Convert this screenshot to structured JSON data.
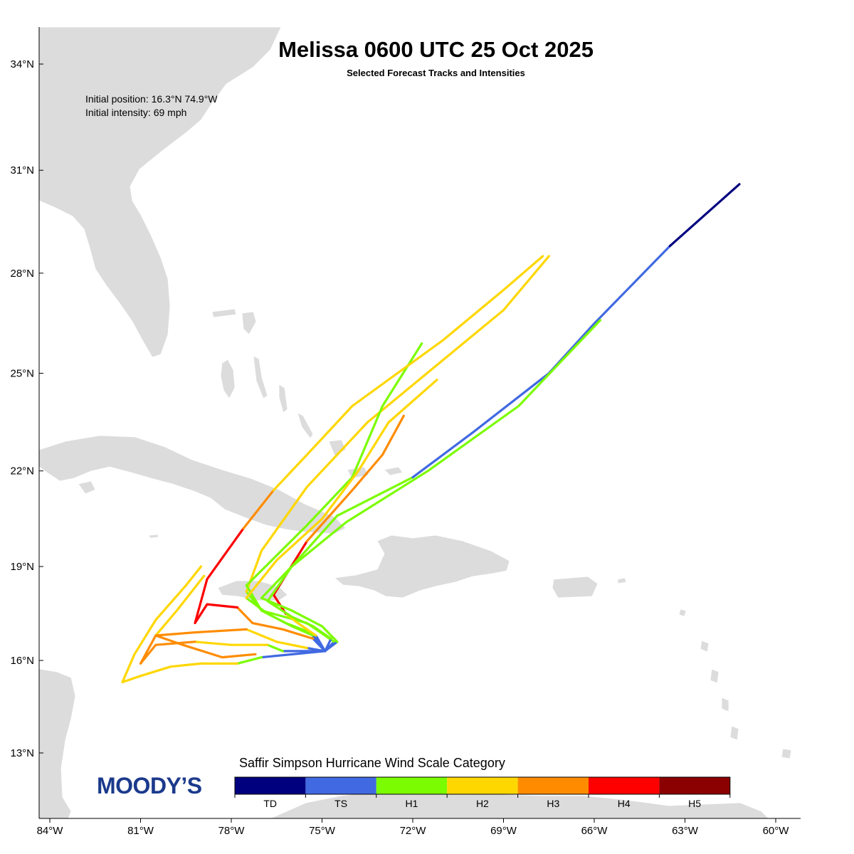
{
  "header": {
    "title": "Melissa 0600 UTC 25 Oct 2025",
    "subtitle": "Selected Forecast Tracks and Intensities"
  },
  "info": {
    "initial_position": "Initial position: 16.3°N 74.9°W",
    "initial_intensity": "Initial intensity: 69 mph"
  },
  "axes": {
    "lat_labels": [
      "34°N",
      "31°N",
      "28°N",
      "25°N",
      "22°N",
      "19°N",
      "16°N",
      "13°N"
    ],
    "lat_values": [
      34,
      31,
      28,
      25,
      22,
      19,
      16,
      13
    ],
    "lon_labels": [
      "84°W",
      "81°W",
      "78°W",
      "75°W",
      "72°W",
      "69°W",
      "66°W",
      "63°W",
      "60°W"
    ],
    "lon_values": [
      -84,
      -81,
      -78,
      -75,
      -72,
      -69,
      -66,
      -63,
      -60
    ]
  },
  "legend": {
    "title": "Saffir Simpson Hurricane Wind Scale Category",
    "categories": [
      {
        "label": "TD",
        "color": "#00007f"
      },
      {
        "label": "TS",
        "color": "#4169e1"
      },
      {
        "label": "H1",
        "color": "#7cfc00"
      },
      {
        "label": "H2",
        "color": "#ffd700"
      },
      {
        "label": "H3",
        "color": "#ff8c00"
      },
      {
        "label": "H4",
        "color": "#ff0000"
      },
      {
        "label": "H5",
        "color": "#8b0000"
      }
    ]
  },
  "logo": {
    "text": "MOODY’S",
    "color": "#1b3a8c"
  },
  "map": {
    "land_color": "#dcdcdc",
    "background": "#ffffff"
  },
  "tracks": [
    {
      "segments": [
        {
          "cat": "TS",
          "points": [
            [
              -74.9,
              16.3
            ],
            [
              -75.4,
              16.9
            ]
          ]
        },
        {
          "cat": "H1",
          "points": [
            [
              -75.4,
              16.9
            ],
            [
              -76.2,
              17.2
            ],
            [
              -77.0,
              17.6
            ],
            [
              -77.5,
              18.2
            ]
          ]
        },
        {
          "cat": "H2",
          "points": [
            [
              -77.5,
              18.2
            ],
            [
              -77.0,
              19.5
            ],
            [
              -75.5,
              21.5
            ],
            [
              -73.5,
              23.5
            ],
            [
              -71.0,
              25.4
            ],
            [
              -69.0,
              26.9
            ],
            [
              -67.5,
              28.5
            ]
          ]
        }
      ]
    },
    {
      "segments": [
        {
          "cat": "TS",
          "points": [
            [
              -74.9,
              16.3
            ],
            [
              -74.6,
              16.6
            ]
          ]
        },
        {
          "cat": "H1",
          "points": [
            [
              -74.6,
              16.6
            ],
            [
              -75.5,
              17.2
            ],
            [
              -77.0,
              17.6
            ],
            [
              -77.5,
              18.4
            ],
            [
              -75.5,
              20.3
            ],
            [
              -74.0,
              21.8
            ],
            [
              -73.0,
              24.0
            ],
            [
              -71.7,
              25.9
            ]
          ]
        }
      ]
    },
    {
      "segments": [
        {
          "cat": "TS",
          "points": [
            [
              -74.9,
              16.3
            ],
            [
              -75.3,
              16.8
            ]
          ]
        },
        {
          "cat": "H1",
          "points": [
            [
              -75.3,
              16.8
            ],
            [
              -76.0,
              17.1
            ],
            [
              -76.8,
              17.5
            ],
            [
              -77.5,
              18.0
            ]
          ]
        },
        {
          "cat": "H2",
          "points": [
            [
              -77.5,
              18.0
            ],
            [
              -76.5,
              19.2
            ],
            [
              -75.0,
              20.5
            ],
            [
              -73.8,
              22.0
            ],
            [
              -72.8,
              23.5
            ],
            [
              -71.2,
              24.8
            ]
          ]
        }
      ]
    },
    {
      "segments": [
        {
          "cat": "TS",
          "points": [
            [
              -74.9,
              16.3
            ],
            [
              -75.2,
              16.8
            ]
          ]
        },
        {
          "cat": "H2",
          "points": [
            [
              -75.2,
              16.8
            ],
            [
              -75.8,
              17.2
            ],
            [
              -76.2,
              17.5
            ]
          ]
        },
        {
          "cat": "H4",
          "points": [
            [
              -76.2,
              17.5
            ],
            [
              -76.6,
              18.1
            ],
            [
              -75.5,
              19.8
            ]
          ]
        },
        {
          "cat": "H3",
          "points": [
            [
              -75.5,
              19.8
            ],
            [
              -74.0,
              21.4
            ],
            [
              -73.0,
              22.5
            ],
            [
              -72.3,
              23.7
            ]
          ]
        }
      ]
    },
    {
      "segments": [
        {
          "cat": "TS",
          "points": [
            [
              -74.9,
              16.3
            ],
            [
              -74.7,
              16.7
            ]
          ]
        },
        {
          "cat": "H1",
          "points": [
            [
              -74.7,
              16.7
            ],
            [
              -75.3,
              17.1
            ],
            [
              -76.0,
              17.4
            ],
            [
              -76.8,
              17.9
            ],
            [
              -76.0,
              19.0
            ],
            [
              -74.5,
              20.6
            ],
            [
              -72.0,
              21.8
            ]
          ]
        },
        {
          "cat": "TS",
          "points": [
            [
              -72.0,
              21.8
            ],
            [
              -70.0,
              23.2
            ],
            [
              -67.5,
              25.0
            ],
            [
              -66.0,
              26.5
            ],
            [
              -63.5,
              28.8
            ]
          ]
        },
        {
          "cat": "TD",
          "points": [
            [
              -63.5,
              28.8
            ],
            [
              -61.2,
              30.6
            ]
          ]
        }
      ]
    },
    {
      "segments": [
        {
          "cat": "TS",
          "points": [
            [
              -74.9,
              16.3
            ],
            [
              -74.5,
              16.6
            ]
          ]
        },
        {
          "cat": "H1",
          "points": [
            [
              -74.5,
              16.6
            ],
            [
              -75.0,
              17.1
            ],
            [
              -76.0,
              17.6
            ],
            [
              -77.0,
              18.0
            ],
            [
              -76.0,
              19.0
            ],
            [
              -74.2,
              20.4
            ],
            [
              -71.5,
              22.0
            ],
            [
              -68.5,
              24.0
            ],
            [
              -65.8,
              26.6
            ]
          ]
        }
      ]
    },
    {
      "segments": [
        {
          "cat": "TS",
          "points": [
            [
              -74.9,
              16.3
            ],
            [
              -75.3,
              16.7
            ]
          ]
        },
        {
          "cat": "H3",
          "points": [
            [
              -75.3,
              16.7
            ],
            [
              -76.3,
              17.0
            ],
            [
              -77.3,
              17.2
            ],
            [
              -77.8,
              17.7
            ]
          ]
        },
        {
          "cat": "H4",
          "points": [
            [
              -77.8,
              17.7
            ],
            [
              -78.8,
              17.8
            ],
            [
              -79.2,
              17.2
            ],
            [
              -78.8,
              18.6
            ],
            [
              -77.6,
              20.2
            ]
          ]
        },
        {
          "cat": "H3",
          "points": [
            [
              -77.6,
              20.2
            ],
            [
              -76.6,
              21.4
            ]
          ]
        },
        {
          "cat": "H2",
          "points": [
            [
              -76.6,
              21.4
            ],
            [
              -75.5,
              22.5
            ],
            [
              -74.0,
              24.0
            ],
            [
              -71.0,
              26.0
            ],
            [
              -69.0,
              27.5
            ],
            [
              -67.7,
              28.5
            ]
          ]
        }
      ]
    },
    {
      "segments": [
        {
          "cat": "TS",
          "points": [
            [
              -74.9,
              16.3
            ],
            [
              -76.3,
              16.3
            ]
          ]
        },
        {
          "cat": "H1",
          "points": [
            [
              -76.3,
              16.3
            ],
            [
              -76.8,
              16.5
            ]
          ]
        },
        {
          "cat": "H2",
          "points": [
            [
              -76.8,
              16.5
            ],
            [
              -78.0,
              16.5
            ],
            [
              -79.2,
              16.6
            ]
          ]
        },
        {
          "cat": "H3",
          "points": [
            [
              -79.2,
              16.6
            ],
            [
              -80.5,
              16.5
            ],
            [
              -81.0,
              15.9
            ],
            [
              -80.5,
              16.8
            ]
          ]
        },
        {
          "cat": "H2",
          "points": [
            [
              -80.5,
              16.8
            ],
            [
              -79.8,
              17.6
            ],
            [
              -78.9,
              18.7
            ]
          ]
        }
      ]
    },
    {
      "segments": [
        {
          "cat": "TS",
          "points": [
            [
              -74.9,
              16.3
            ],
            [
              -77.0,
              16.1
            ]
          ]
        },
        {
          "cat": "H1",
          "points": [
            [
              -77.0,
              16.1
            ],
            [
              -77.8,
              15.9
            ]
          ]
        },
        {
          "cat": "H2",
          "points": [
            [
              -77.8,
              15.9
            ],
            [
              -79.0,
              15.9
            ],
            [
              -80.0,
              15.8
            ],
            [
              -81.0,
              15.5
            ],
            [
              -81.6,
              15.3
            ],
            [
              -81.2,
              16.2
            ],
            [
              -80.5,
              17.3
            ],
            [
              -79.5,
              18.4
            ],
            [
              -79.0,
              19.0
            ]
          ]
        }
      ]
    },
    {
      "segments": [
        {
          "cat": "TS",
          "points": [
            [
              -74.9,
              16.3
            ],
            [
              -75.5,
              16.4
            ]
          ]
        },
        {
          "cat": "H2",
          "points": [
            [
              -75.5,
              16.4
            ],
            [
              -76.5,
              16.6
            ],
            [
              -77.5,
              17.0
            ]
          ]
        },
        {
          "cat": "H3",
          "points": [
            [
              -77.5,
              17.0
            ],
            [
              -79.2,
              16.9
            ],
            [
              -80.5,
              16.8
            ],
            [
              -79.6,
              16.5
            ],
            [
              -78.3,
              16.1
            ],
            [
              -77.2,
              16.2
            ]
          ]
        }
      ]
    }
  ]
}
